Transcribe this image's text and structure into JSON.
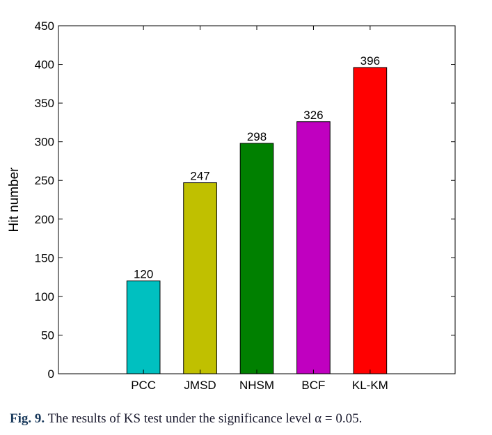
{
  "chart_data": {
    "type": "bar",
    "categories": [
      "PCC",
      "JMSD",
      "NHSM",
      "BCF",
      "KL-KM"
    ],
    "values": [
      120,
      247,
      298,
      326,
      396
    ],
    "colors": [
      "#00c0c0",
      "#c0c000",
      "#008000",
      "#c000c0",
      "#ff0000"
    ],
    "ylabel": "Hit number",
    "xlabel": "",
    "title": "",
    "ylim": [
      0,
      450
    ],
    "yticks": [
      0,
      50,
      100,
      150,
      200,
      250,
      300,
      350,
      400,
      450
    ],
    "grid": false,
    "legend": "none"
  },
  "caption": {
    "label": "Fig. 9.",
    "text": "The results of KS test under the significance level α = 0.05."
  }
}
